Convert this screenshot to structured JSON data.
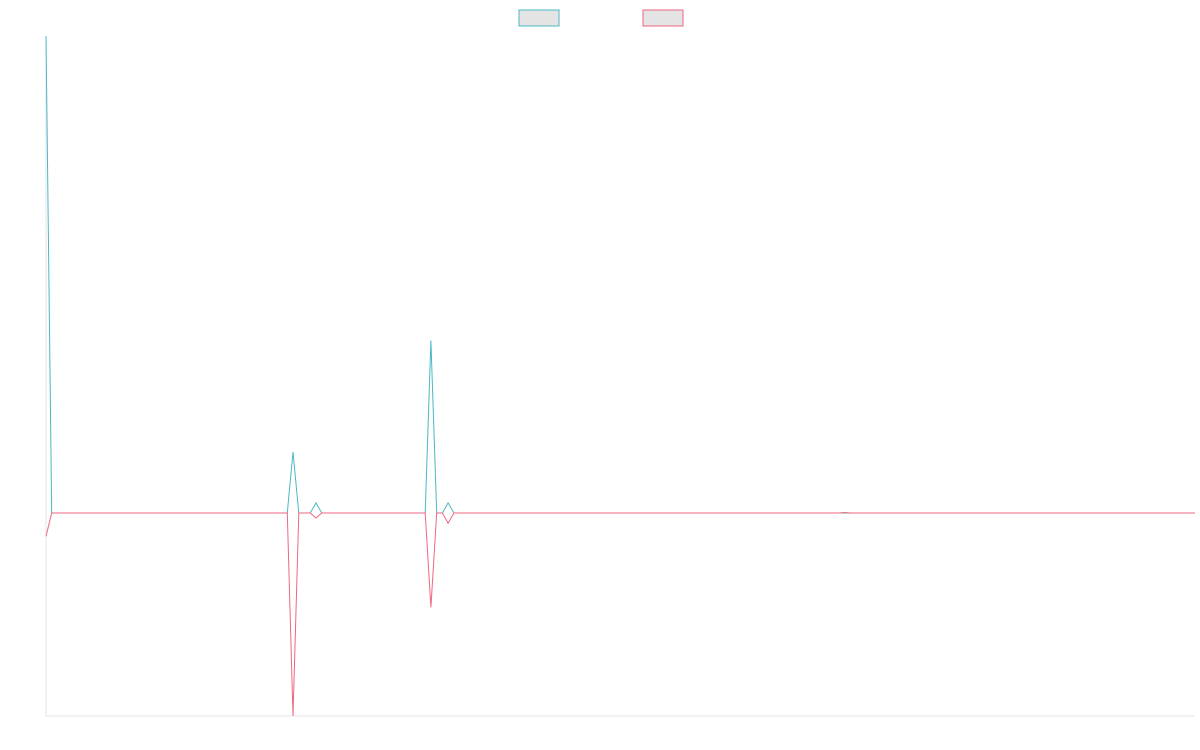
{
  "chart_data": {
    "type": "line",
    "title": "",
    "xlabel": "",
    "ylabel": "",
    "grid": false,
    "legend": "top-center",
    "x": [
      0,
      1,
      42,
      43,
      44,
      46,
      47,
      48,
      66,
      67,
      68,
      69,
      70,
      71,
      138,
      139,
      140,
      200
    ],
    "xlim": [
      0,
      200
    ],
    "ylim": [
      -20,
      47
    ],
    "series": [
      {
        "color": "#4bb8c4",
        "fill": "#e4e4e4",
        "values": [
          47,
          0,
          0,
          6,
          0,
          0,
          1,
          0,
          0,
          17,
          0,
          0,
          1,
          0,
          0,
          0,
          0,
          0
        ]
      },
      {
        "color": "#f0667f",
        "fill": "#e4e4e4",
        "values": [
          -2.3,
          0,
          0,
          -20,
          0,
          0,
          -0.5,
          0,
          0,
          -9.3,
          0,
          0,
          -1,
          0,
          0,
          0.05,
          0,
          0
        ]
      }
    ]
  }
}
